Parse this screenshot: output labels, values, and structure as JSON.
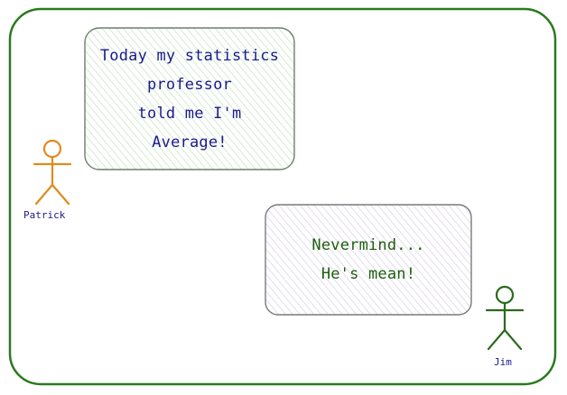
{
  "colors": {
    "frame": "#2a7a1e",
    "bubble1_border": "#6b7f6b",
    "bubble1_hatch": "#a8d8a0",
    "bubble2_border": "#7a7a7a",
    "bubble2_hatch": "#c8b8e0",
    "patrick_figure": "#e08a1e",
    "jim_figure": "#2a6a1e",
    "bubble1_text": "#1a1a8c",
    "bubble2_text": "#1f5e0d",
    "name_text": "#1a1a8c"
  },
  "bubble1": {
    "lines": [
      "Today my statistics",
      "professor",
      "told me I'm",
      "Average!"
    ]
  },
  "bubble2": {
    "lines": [
      "Nevermind...",
      "He's mean!"
    ]
  },
  "patrick": {
    "name": "Patrick",
    "icon": "stick-figure-icon"
  },
  "jim": {
    "name": "Jim",
    "icon": "stick-figure-icon"
  }
}
